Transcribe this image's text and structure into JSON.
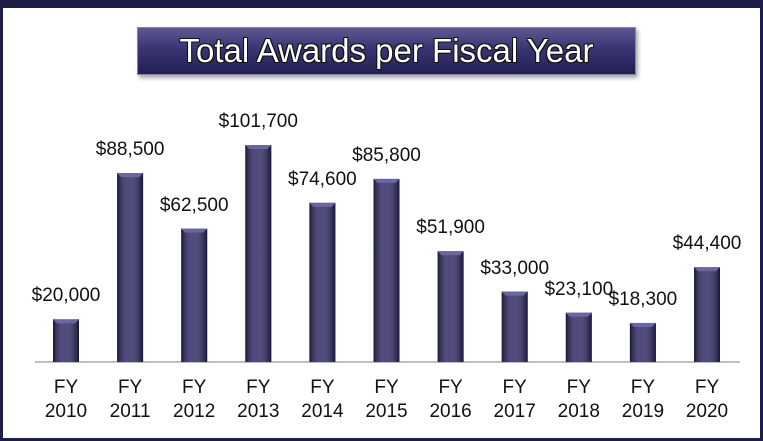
{
  "chart_data": {
    "type": "bar",
    "title": "Total Awards per Fiscal Year",
    "categories": [
      "FY 2010",
      "FY 2011",
      "FY 2012",
      "FY 2013",
      "FY 2014",
      "FY 2015",
      "FY 2016",
      "FY 2017",
      "FY 2018",
      "FY 2019",
      "FY 2020"
    ],
    "values": [
      20000,
      88500,
      62500,
      101700,
      74600,
      85800,
      51900,
      33000,
      23100,
      18300,
      44400
    ],
    "value_labels": [
      "$20,000",
      "$88,500",
      "$62,500",
      "$101,700",
      "$74,600",
      "$85,800",
      "$51,900",
      "$33,000",
      "$23,100",
      "$18,300",
      "$44,400"
    ],
    "color": "#2f2a68"
  }
}
